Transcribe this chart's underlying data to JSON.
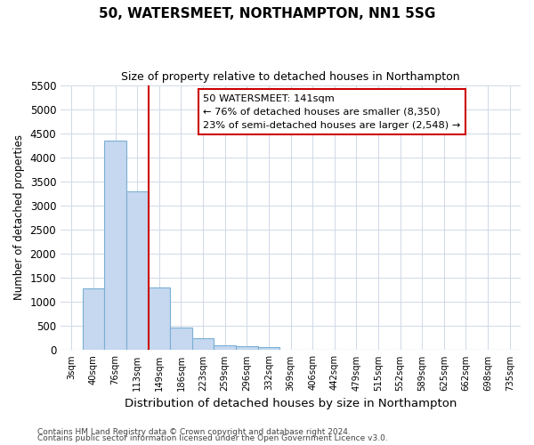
{
  "title": "50, WATERSMEET, NORTHAMPTON, NN1 5SG",
  "subtitle": "Size of property relative to detached houses in Northampton",
  "xlabel": "Distribution of detached houses by size in Northampton",
  "ylabel": "Number of detached properties",
  "footnote1": "Contains HM Land Registry data © Crown copyright and database right 2024.",
  "footnote2": "Contains public sector information licensed under the Open Government Licence v3.0.",
  "categories": [
    "3sqm",
    "40sqm",
    "76sqm",
    "113sqm",
    "149sqm",
    "186sqm",
    "223sqm",
    "259sqm",
    "296sqm",
    "332sqm",
    "369sqm",
    "406sqm",
    "442sqm",
    "479sqm",
    "515sqm",
    "552sqm",
    "589sqm",
    "625sqm",
    "662sqm",
    "698sqm",
    "735sqm"
  ],
  "values": [
    0,
    1275,
    4350,
    3300,
    1300,
    475,
    240,
    100,
    75,
    60,
    0,
    0,
    0,
    0,
    0,
    0,
    0,
    0,
    0,
    0,
    0
  ],
  "bar_color": "#c5d8ef",
  "bar_edge_color": "#7bafd4",
  "vline_x_index": 4,
  "vline_color": "#cc0000",
  "annotation_line1": "50 WATERSMEET: 141sqm",
  "annotation_line2": "← 76% of detached houses are smaller (8,350)",
  "annotation_line3": "23% of semi-detached houses are larger (2,548) →",
  "annotation_box_color": "#ffffff",
  "annotation_box_edge": "#cc0000",
  "ylim": [
    0,
    5500
  ],
  "yticks": [
    0,
    500,
    1000,
    1500,
    2000,
    2500,
    3000,
    3500,
    4000,
    4500,
    5000,
    5500
  ],
  "background_color": "#ffffff",
  "grid_color": "#d0d8e8"
}
